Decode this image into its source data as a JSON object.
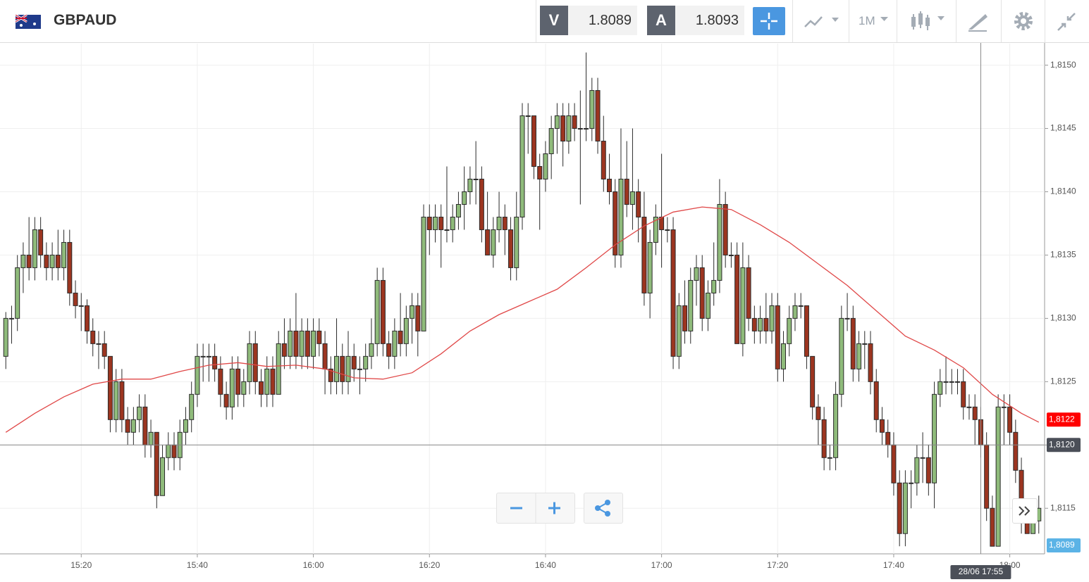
{
  "header": {
    "symbol": "GBPAUD",
    "sell": {
      "label": "V",
      "price": "1.8089"
    },
    "buy": {
      "label": "A",
      "price": "1.8093"
    },
    "timeframe": "1M"
  },
  "chart_data": {
    "type": "candlestick",
    "x": [
      "15:07",
      "15:08",
      "15:09",
      "15:10",
      "15:11",
      "15:12",
      "15:13",
      "15:14",
      "15:15",
      "15:16",
      "15:17",
      "15:18",
      "15:19",
      "15:20",
      "15:21",
      "15:22",
      "15:23",
      "15:24",
      "15:25",
      "15:26",
      "15:27",
      "15:28",
      "15:29",
      "15:30",
      "15:31",
      "15:32",
      "15:33",
      "15:34",
      "15:35",
      "15:36",
      "15:37",
      "15:38",
      "15:39",
      "15:40",
      "15:41",
      "15:42",
      "15:43",
      "15:44",
      "15:45",
      "15:46",
      "15:47",
      "15:48",
      "15:49",
      "15:50",
      "15:51",
      "15:52",
      "15:53",
      "15:54",
      "15:55",
      "15:56",
      "15:57",
      "15:58",
      "15:59",
      "16:00",
      "16:01",
      "16:02",
      "16:03",
      "16:04",
      "16:05",
      "16:06",
      "16:07",
      "16:08",
      "16:09",
      "16:10",
      "16:11",
      "16:12",
      "16:13",
      "16:14",
      "16:15",
      "16:16",
      "16:17",
      "16:18",
      "16:19",
      "16:20",
      "16:21",
      "16:22",
      "16:23",
      "16:24",
      "16:25",
      "16:26",
      "16:27",
      "16:28",
      "16:29",
      "16:30",
      "16:31",
      "16:32",
      "16:33",
      "16:34",
      "16:35",
      "16:36",
      "16:37",
      "16:38",
      "16:39",
      "16:40",
      "16:41",
      "16:42",
      "16:43",
      "16:44",
      "16:45",
      "16:46",
      "16:47",
      "16:48",
      "16:49",
      "16:50",
      "16:51",
      "16:52",
      "16:53",
      "16:54",
      "16:55",
      "16:56",
      "16:57",
      "16:58",
      "16:59",
      "17:00",
      "17:01",
      "17:02",
      "17:03",
      "17:04",
      "17:05",
      "17:06",
      "17:07",
      "17:08",
      "17:09",
      "17:10",
      "17:11",
      "17:12",
      "17:13",
      "17:14",
      "17:15",
      "17:16",
      "17:17",
      "17:18",
      "17:19",
      "17:20",
      "17:21",
      "17:22",
      "17:23",
      "17:24",
      "17:25",
      "17:26",
      "17:27",
      "17:28",
      "17:29",
      "17:30",
      "17:31",
      "17:32",
      "17:33",
      "17:34",
      "17:35",
      "17:36",
      "17:37",
      "17:38",
      "17:39",
      "17:40",
      "17:41",
      "17:42",
      "17:43",
      "17:44",
      "17:45",
      "17:46",
      "17:47",
      "17:48",
      "17:49",
      "17:50",
      "17:51",
      "17:52",
      "17:53",
      "17:54",
      "17:55",
      "17:56",
      "17:57",
      "17:58",
      "17:59",
      "18:00",
      "18:01",
      "18:02",
      "18:03",
      "18:04",
      "18:05"
    ],
    "ohlc": [
      [
        1.8127,
        1.81305,
        1.8126,
        1.813
      ],
      [
        1.813,
        1.8131,
        1.8128,
        1.813
      ],
      [
        1.813,
        1.8135,
        1.8129,
        1.8134
      ],
      [
        1.8134,
        1.8136,
        1.8132,
        1.8135
      ],
      [
        1.8135,
        1.8138,
        1.8133,
        1.8134
      ],
      [
        1.8134,
        1.8138,
        1.8133,
        1.8137
      ],
      [
        1.8137,
        1.8138,
        1.8134,
        1.8135
      ],
      [
        1.8135,
        1.8136,
        1.8133,
        1.8134
      ],
      [
        1.8134,
        1.8136,
        1.8133,
        1.8135
      ],
      [
        1.8135,
        1.8137,
        1.8133,
        1.8134
      ],
      [
        1.8134,
        1.8137,
        1.8133,
        1.8136
      ],
      [
        1.8136,
        1.8137,
        1.8131,
        1.8132
      ],
      [
        1.8132,
        1.8133,
        1.813,
        1.8131
      ],
      [
        1.8131,
        1.8132,
        1.8129,
        1.8131
      ],
      [
        1.8131,
        1.81315,
        1.8128,
        1.8129
      ],
      [
        1.8129,
        1.813,
        1.8127,
        1.8128
      ],
      [
        1.8128,
        1.8129,
        1.8126,
        1.8128
      ],
      [
        1.8128,
        1.8129,
        1.8126,
        1.8127
      ],
      [
        1.8127,
        1.8127,
        1.8121,
        1.8122
      ],
      [
        1.8122,
        1.8126,
        1.8121,
        1.8125
      ],
      [
        1.8125,
        1.8126,
        1.8121,
        1.8122
      ],
      [
        1.8122,
        1.8123,
        1.812,
        1.8121
      ],
      [
        1.8121,
        1.8123,
        1.812,
        1.8122
      ],
      [
        1.8122,
        1.8124,
        1.8121,
        1.8123
      ],
      [
        1.8123,
        1.8124,
        1.8119,
        1.812
      ],
      [
        1.812,
        1.8122,
        1.8119,
        1.8121
      ],
      [
        1.8121,
        1.8121,
        1.8115,
        1.8116
      ],
      [
        1.8116,
        1.812,
        1.8116,
        1.8119
      ],
      [
        1.8119,
        1.8121,
        1.8118,
        1.812
      ],
      [
        1.812,
        1.8121,
        1.8118,
        1.8119
      ],
      [
        1.8119,
        1.8122,
        1.8118,
        1.8121
      ],
      [
        1.8121,
        1.8123,
        1.812,
        1.8122
      ],
      [
        1.8122,
        1.8125,
        1.8121,
        1.8124
      ],
      [
        1.8124,
        1.8128,
        1.8123,
        1.8127
      ],
      [
        1.8127,
        1.8128,
        1.8125,
        1.8127
      ],
      [
        1.8127,
        1.8128,
        1.8125,
        1.8127
      ],
      [
        1.8127,
        1.8128,
        1.8125,
        1.8126
      ],
      [
        1.8126,
        1.8127,
        1.8123,
        1.8124
      ],
      [
        1.8124,
        1.8125,
        1.8122,
        1.8123
      ],
      [
        1.8123,
        1.8127,
        1.8122,
        1.8126
      ],
      [
        1.8126,
        1.8127,
        1.8123,
        1.8124
      ],
      [
        1.8124,
        1.8126,
        1.8123,
        1.8125
      ],
      [
        1.8125,
        1.8129,
        1.8124,
        1.8128
      ],
      [
        1.8128,
        1.8129,
        1.8124,
        1.8125
      ],
      [
        1.8125,
        1.8126,
        1.8123,
        1.8124
      ],
      [
        1.8124,
        1.8127,
        1.8123,
        1.8126
      ],
      [
        1.8126,
        1.8127,
        1.8123,
        1.8124
      ],
      [
        1.8124,
        1.8129,
        1.8124,
        1.8128
      ],
      [
        1.8128,
        1.813,
        1.8126,
        1.8127
      ],
      [
        1.8127,
        1.813,
        1.8126,
        1.8129
      ],
      [
        1.8129,
        1.8132,
        1.8126,
        1.8127
      ],
      [
        1.8127,
        1.813,
        1.8126,
        1.8129
      ],
      [
        1.8129,
        1.813,
        1.8126,
        1.8127
      ],
      [
        1.8127,
        1.813,
        1.8126,
        1.8129
      ],
      [
        1.8129,
        1.813,
        1.8127,
        1.8128
      ],
      [
        1.8128,
        1.8129,
        1.8124,
        1.8126
      ],
      [
        1.8126,
        1.8127,
        1.8124,
        1.8125
      ],
      [
        1.8125,
        1.813,
        1.8124,
        1.8127
      ],
      [
        1.8127,
        1.8128,
        1.8124,
        1.8125
      ],
      [
        1.8125,
        1.8129,
        1.8124,
        1.8127
      ],
      [
        1.8127,
        1.8128,
        1.8125,
        1.8126
      ],
      [
        1.8126,
        1.8127,
        1.8124,
        1.8126
      ],
      [
        1.8126,
        1.8128,
        1.8125,
        1.8127
      ],
      [
        1.8127,
        1.813,
        1.8126,
        1.8128
      ],
      [
        1.8128,
        1.8134,
        1.8127,
        1.8133
      ],
      [
        1.8133,
        1.8134,
        1.8127,
        1.8128
      ],
      [
        1.8128,
        1.8129,
        1.8126,
        1.8127
      ],
      [
        1.8127,
        1.813,
        1.8126,
        1.8129
      ],
      [
        1.8129,
        1.8132,
        1.8127,
        1.8128
      ],
      [
        1.8128,
        1.8131,
        1.8127,
        1.813
      ],
      [
        1.813,
        1.8132,
        1.8128,
        1.8131
      ],
      [
        1.8131,
        1.8132,
        1.8127,
        1.8129
      ],
      [
        1.8129,
        1.8139,
        1.8129,
        1.8138
      ],
      [
        1.8138,
        1.8139,
        1.8135,
        1.8137
      ],
      [
        1.8137,
        1.8139,
        1.8136,
        1.8138
      ],
      [
        1.8138,
        1.8139,
        1.8134,
        1.8137
      ],
      [
        1.8137,
        1.8142,
        1.8136,
        1.8137
      ],
      [
        1.8137,
        1.8139,
        1.8136,
        1.8138
      ],
      [
        1.8138,
        1.814,
        1.8137,
        1.8139
      ],
      [
        1.8139,
        1.8142,
        1.8137,
        1.814
      ],
      [
        1.814,
        1.8142,
        1.8139,
        1.8141
      ],
      [
        1.8141,
        1.8144,
        1.8139,
        1.8141
      ],
      [
        1.8141,
        1.8142,
        1.8136,
        1.8137
      ],
      [
        1.8137,
        1.814,
        1.8135,
        1.8135
      ],
      [
        1.8135,
        1.8138,
        1.8134,
        1.8137
      ],
      [
        1.8137,
        1.814,
        1.8136,
        1.8138
      ],
      [
        1.8138,
        1.8139,
        1.8135,
        1.8137
      ],
      [
        1.8137,
        1.8138,
        1.8133,
        1.8134
      ],
      [
        1.8134,
        1.814,
        1.8133,
        1.8138
      ],
      [
        1.8138,
        1.8147,
        1.8137,
        1.8146
      ],
      [
        1.8146,
        1.8147,
        1.8143,
        1.8146
      ],
      [
        1.8146,
        1.8146,
        1.8141,
        1.8142
      ],
      [
        1.8142,
        1.8143,
        1.8137,
        1.8141
      ],
      [
        1.8141,
        1.8144,
        1.814,
        1.8143
      ],
      [
        1.8143,
        1.8146,
        1.8141,
        1.8145
      ],
      [
        1.8145,
        1.8147,
        1.8143,
        1.8146
      ],
      [
        1.8146,
        1.8147,
        1.8142,
        1.8144
      ],
      [
        1.8144,
        1.8147,
        1.8143,
        1.8146
      ],
      [
        1.8146,
        1.8147,
        1.8144,
        1.8145
      ],
      [
        1.8145,
        1.8148,
        1.8139,
        1.8145
      ],
      [
        1.8145,
        1.8151,
        1.8144,
        1.8145
      ],
      [
        1.8145,
        1.8149,
        1.8144,
        1.8148
      ],
      [
        1.8148,
        1.8149,
        1.8143,
        1.8144
      ],
      [
        1.8144,
        1.8146,
        1.814,
        1.8141
      ],
      [
        1.8141,
        1.8143,
        1.8139,
        1.814
      ],
      [
        1.814,
        1.8141,
        1.8134,
        1.8135
      ],
      [
        1.8135,
        1.8145,
        1.8134,
        1.8141
      ],
      [
        1.8141,
        1.8144,
        1.8138,
        1.8139
      ],
      [
        1.8139,
        1.8145,
        1.8137,
        1.814
      ],
      [
        1.814,
        1.8141,
        1.8136,
        1.8138
      ],
      [
        1.8138,
        1.814,
        1.8131,
        1.8132
      ],
      [
        1.8132,
        1.8137,
        1.813,
        1.8136
      ],
      [
        1.8136,
        1.8139,
        1.8135,
        1.8138
      ],
      [
        1.8138,
        1.8143,
        1.8134,
        1.8137
      ],
      [
        1.8137,
        1.8138,
        1.8136,
        1.8137
      ],
      [
        1.8137,
        1.8138,
        1.8126,
        1.8127
      ],
      [
        1.8127,
        1.8132,
        1.8126,
        1.8131
      ],
      [
        1.8131,
        1.8133,
        1.8128,
        1.8129
      ],
      [
        1.8129,
        1.8134,
        1.8128,
        1.8133
      ],
      [
        1.8133,
        1.8135,
        1.8131,
        1.8134
      ],
      [
        1.8134,
        1.8135,
        1.8129,
        1.813
      ],
      [
        1.813,
        1.8133,
        1.8129,
        1.8132
      ],
      [
        1.8132,
        1.8136,
        1.8131,
        1.8133
      ],
      [
        1.8133,
        1.8141,
        1.8132,
        1.8139
      ],
      [
        1.8139,
        1.814,
        1.8134,
        1.8135
      ],
      [
        1.8135,
        1.8136,
        1.8134,
        1.8135
      ],
      [
        1.8135,
        1.8136,
        1.8128,
        1.8128
      ],
      [
        1.8128,
        1.8136,
        1.8127,
        1.8134
      ],
      [
        1.8134,
        1.8135,
        1.8129,
        1.813
      ],
      [
        1.813,
        1.8131,
        1.8128,
        1.8129
      ],
      [
        1.8129,
        1.8131,
        1.8128,
        1.813
      ],
      [
        1.813,
        1.8132,
        1.8128,
        1.8129
      ],
      [
        1.8129,
        1.8132,
        1.8128,
        1.8131
      ],
      [
        1.8131,
        1.8132,
        1.8125,
        1.8126
      ],
      [
        1.8126,
        1.8129,
        1.8125,
        1.8128
      ],
      [
        1.8128,
        1.8131,
        1.8127,
        1.813
      ],
      [
        1.813,
        1.8132,
        1.8129,
        1.8131
      ],
      [
        1.8131,
        1.8132,
        1.813,
        1.8131
      ],
      [
        1.8131,
        1.8131,
        1.8126,
        1.8127
      ],
      [
        1.8127,
        1.8127,
        1.8122,
        1.8123
      ],
      [
        1.8123,
        1.8124,
        1.812,
        1.8122
      ],
      [
        1.8122,
        1.8123,
        1.8118,
        1.8119
      ],
      [
        1.8119,
        1.812,
        1.8118,
        1.8119
      ],
      [
        1.8119,
        1.8125,
        1.8118,
        1.8124
      ],
      [
        1.8124,
        1.8131,
        1.8123,
        1.813
      ],
      [
        1.813,
        1.8132,
        1.8129,
        1.813
      ],
      [
        1.813,
        1.8131,
        1.8125,
        1.8126
      ],
      [
        1.8126,
        1.8129,
        1.8125,
        1.8128
      ],
      [
        1.8128,
        1.8129,
        1.8126,
        1.8128
      ],
      [
        1.8128,
        1.8129,
        1.8124,
        1.8125
      ],
      [
        1.8125,
        1.8126,
        1.8121,
        1.8122
      ],
      [
        1.8122,
        1.8123,
        1.812,
        1.8121
      ],
      [
        1.8121,
        1.8122,
        1.8119,
        1.812
      ],
      [
        1.812,
        1.8121,
        1.8116,
        1.8117
      ],
      [
        1.8117,
        1.8118,
        1.8112,
        1.8113
      ],
      [
        1.8113,
        1.8118,
        1.8112,
        1.8117
      ],
      [
        1.8117,
        1.8118,
        1.8115,
        1.8117
      ],
      [
        1.8117,
        1.812,
        1.8116,
        1.8119
      ],
      [
        1.8119,
        1.8121,
        1.8117,
        1.8119
      ],
      [
        1.8119,
        1.812,
        1.8116,
        1.8117
      ],
      [
        1.8117,
        1.8125,
        1.8115,
        1.8124
      ],
      [
        1.8124,
        1.8126,
        1.8123,
        1.8125
      ],
      [
        1.8125,
        1.8127,
        1.8124,
        1.8125
      ],
      [
        1.8125,
        1.8126,
        1.8124,
        1.8125
      ],
      [
        1.8125,
        1.8126,
        1.8124,
        1.8125
      ],
      [
        1.8125,
        1.8126,
        1.8122,
        1.8123
      ],
      [
        1.8123,
        1.8124,
        1.8122,
        1.8123
      ],
      [
        1.8123,
        1.8124,
        1.812,
        1.8122
      ],
      [
        1.8122,
        1.8123,
        1.8119,
        1.812
      ],
      [
        1.812,
        1.8121,
        1.8114,
        1.8115
      ],
      [
        1.8115,
        1.8116,
        1.8112,
        1.8112
      ],
      [
        1.8112,
        1.8124,
        1.8112,
        1.8123
      ],
      [
        1.8123,
        1.8124,
        1.812,
        1.8123
      ],
      [
        1.8123,
        1.8124,
        1.812,
        1.8121
      ],
      [
        1.8121,
        1.8122,
        1.8117,
        1.8118
      ],
      [
        1.8118,
        1.8119,
        1.8113,
        1.8114
      ],
      [
        1.8114,
        1.8115,
        1.8113,
        1.8113
      ],
      [
        1.8113,
        1.8115,
        1.8113,
        1.8114
      ],
      [
        1.8114,
        1.8116,
        1.8113,
        1.8115
      ]
    ],
    "up_color": "#8fbb7b",
    "down_color": "#9c3520",
    "moving_average": {
      "color": "#e04848",
      "x": [
        "15:07",
        "15:12",
        "15:17",
        "15:22",
        "15:27",
        "15:32",
        "15:37",
        "15:42",
        "15:47",
        "15:52",
        "15:57",
        "16:02",
        "16:07",
        "16:12",
        "16:17",
        "16:22",
        "16:27",
        "16:32",
        "16:37",
        "16:42",
        "16:47",
        "16:52",
        "16:57",
        "17:02",
        "17:07",
        "17:12",
        "17:17",
        "17:22",
        "17:27",
        "17:32",
        "17:37",
        "17:42",
        "17:47",
        "17:52",
        "17:57",
        "18:02",
        "18:05"
      ],
      "values": [
        1.8121,
        1.81225,
        1.81238,
        1.81248,
        1.81252,
        1.81252,
        1.81258,
        1.81263,
        1.81265,
        1.81262,
        1.81263,
        1.8126,
        1.81253,
        1.81252,
        1.81257,
        1.81272,
        1.8129,
        1.81303,
        1.81313,
        1.81323,
        1.8134,
        1.81358,
        1.81373,
        1.81384,
        1.81388,
        1.81386,
        1.81374,
        1.8136,
        1.81343,
        1.81326,
        1.81306,
        1.81286,
        1.81275,
        1.81261,
        1.8124,
        1.81225,
        1.81218
      ]
    },
    "xlim": [
      "15:06",
      "18:06"
    ],
    "xticks": [
      "15:20",
      "15:40",
      "16:00",
      "16:20",
      "16:40",
      "17:00",
      "17:20",
      "17:40",
      "18:00"
    ],
    "ylim": [
      1.81114,
      1.81517
    ],
    "yticks": [
      {
        "value": 1.8115,
        "label": "1,8115"
      },
      {
        "value": 1.812,
        "label": "1,8120"
      },
      {
        "value": 1.8125,
        "label": "1,8125"
      },
      {
        "value": 1.813,
        "label": "1,8130"
      },
      {
        "value": 1.8135,
        "label": "1,8135"
      },
      {
        "value": 1.814,
        "label": "1,8140"
      },
      {
        "value": 1.8145,
        "label": "1,8145"
      },
      {
        "value": 1.815,
        "label": "1,8150"
      }
    ],
    "grid": true,
    "ma_marker": {
      "value": 1.8122,
      "label": "1,8122"
    },
    "bid_marker": {
      "value": 1.8089,
      "label": "1,8089"
    },
    "crosshair": {
      "x": "17:55",
      "x_label": "28/06 17:55",
      "y": {
        "value": 1.812,
        "label": "1,8120"
      }
    }
  }
}
